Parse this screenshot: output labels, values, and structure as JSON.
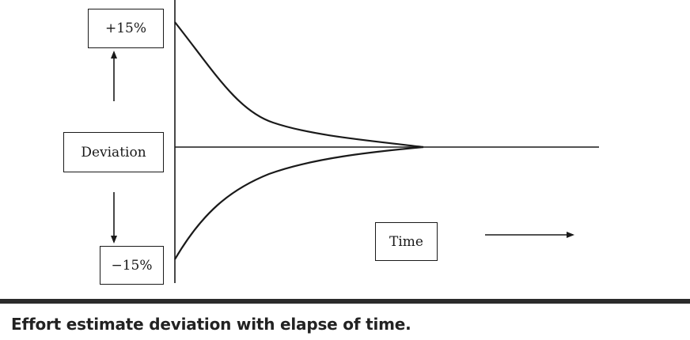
{
  "diagram": {
    "upper_bound_label": "+15%",
    "deviation_label": "Deviation",
    "lower_bound_label": "−15%",
    "time_label": "Time"
  },
  "caption": "Effort estimate deviation with elapse of time."
}
